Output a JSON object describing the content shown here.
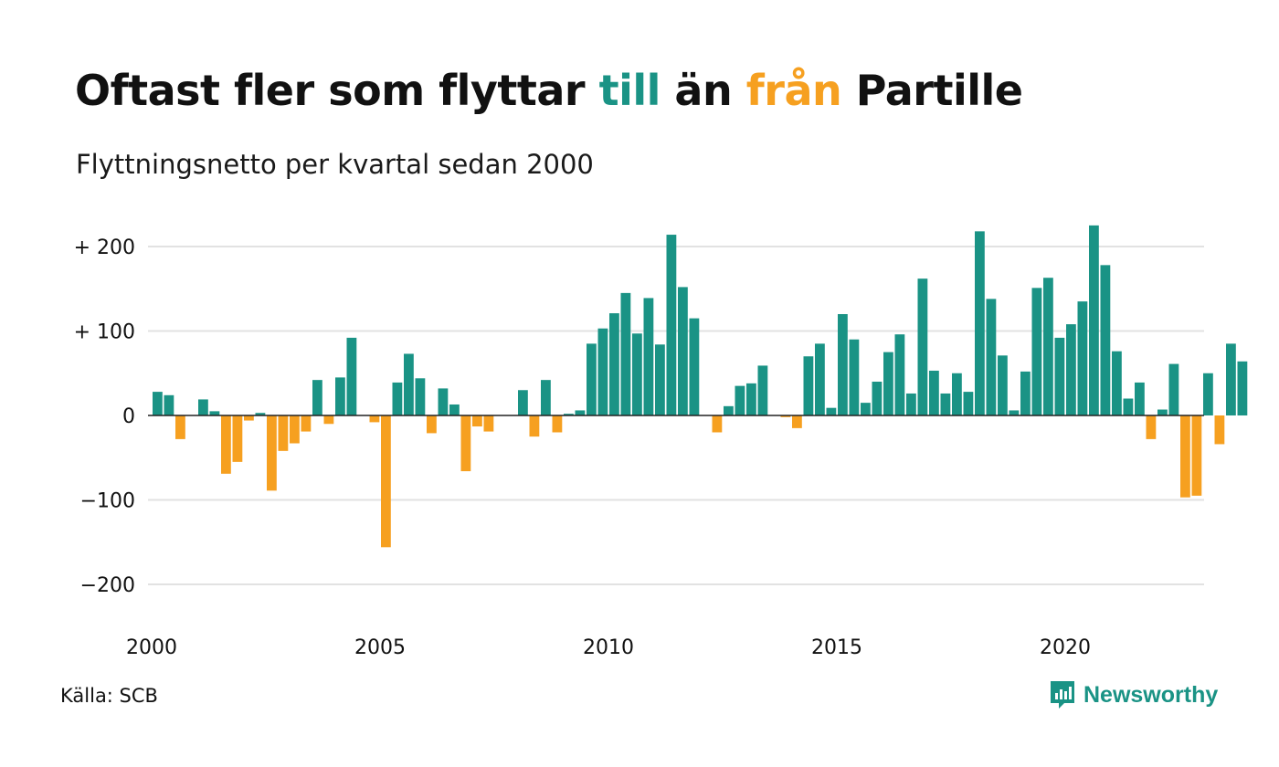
{
  "title": {
    "part1": "Oftast fler som flyttar ",
    "part2": "till",
    "part3": " än ",
    "part4": "från",
    "part5": " Partille"
  },
  "subtitle": "Flyttningsnetto per kvartal sedan 2000",
  "source": "Källa: SCB",
  "brand": "Newsworthy",
  "colors": {
    "positive": "#1a9385",
    "negative": "#f6a020",
    "grid": "#e2e2e2",
    "zero_line": "#222222",
    "text": "#111111"
  },
  "chart_data": {
    "type": "bar",
    "x_start": 2000,
    "periods_per_year": 4,
    "ylim": [
      -240,
      240
    ],
    "yticks": [
      {
        "value": 200,
        "label": "+ 200"
      },
      {
        "value": 100,
        "label": "+ 100"
      },
      {
        "value": 0,
        "label": "0"
      },
      {
        "value": -100,
        "label": "−100"
      },
      {
        "value": -200,
        "label": "−200"
      }
    ],
    "xticks": [
      {
        "value": 2000,
        "label": "2000"
      },
      {
        "value": 2005,
        "label": "2005"
      },
      {
        "value": 2010,
        "label": "2010"
      },
      {
        "value": 2015,
        "label": "2015"
      },
      {
        "value": 2020,
        "label": "2020"
      }
    ],
    "values": [
      28,
      24,
      -28,
      0,
      19,
      5,
      -69,
      -55,
      -6,
      3,
      -89,
      -42,
      -33,
      -19,
      42,
      -10,
      45,
      92,
      0,
      -8,
      -156,
      39,
      73,
      44,
      -21,
      32,
      13,
      -66,
      -13,
      -19,
      0,
      0,
      30,
      -25,
      42,
      -20,
      2,
      6,
      85,
      103,
      121,
      145,
      97,
      139,
      84,
      214,
      152,
      115,
      0,
      -20,
      11,
      35,
      38,
      59,
      0,
      -2,
      -15,
      70,
      85,
      9,
      120,
      90,
      15,
      40,
      75,
      96,
      26,
      162,
      53,
      26,
      50,
      28,
      218,
      138,
      71,
      6,
      52,
      151,
      163,
      92,
      108,
      135,
      225,
      178,
      76,
      20,
      39,
      -28,
      7,
      61,
      -97,
      -95,
      50,
      -34,
      85,
      64
    ]
  }
}
